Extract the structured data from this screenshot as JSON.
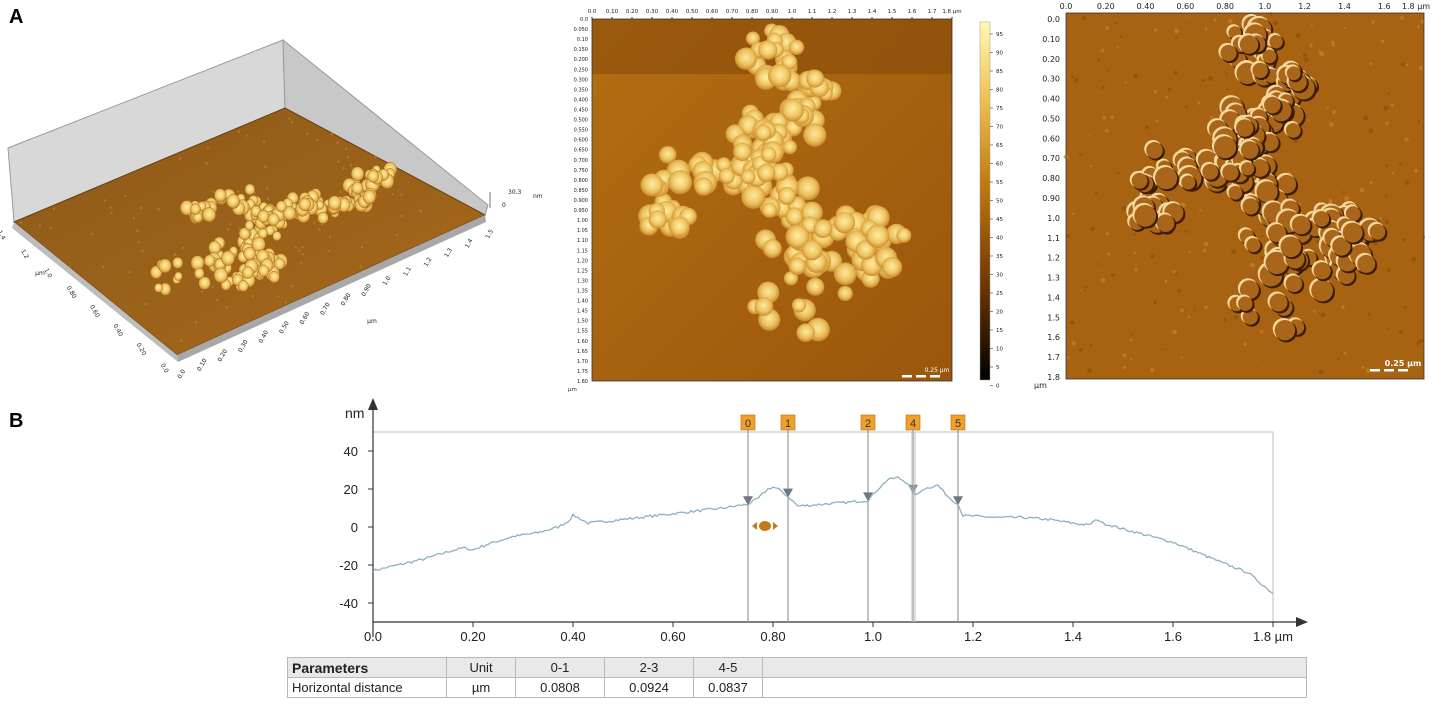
{
  "panel_labels": {
    "a": "A",
    "b": "B"
  },
  "colors": {
    "afm_dark": "#3a1d00",
    "afm_mid": "#b77314",
    "afm_light": "#fff2a8",
    "profile_line": "#8fb0c0",
    "marker_fill": "#f1a12a",
    "marker_arrow": "#6f7780"
  },
  "panel_a": {
    "view3d": {
      "x_ticks": [
        "0.0",
        "0.10",
        "0.20",
        "0.30",
        "0.40",
        "0.50",
        "0.60",
        "0.70",
        "0.80",
        "0.90",
        "1.0",
        "1.1",
        "1.2",
        "1.3",
        "1.4",
        "1.5"
      ],
      "x_unit": "µm",
      "y_ticks": [
        "0.0",
        "0.20",
        "0.40",
        "0.60",
        "0.80",
        "1.0",
        "1.2",
        "1.4"
      ],
      "y_unit": "µm",
      "z_ticks": [
        "30.3",
        "0"
      ],
      "z_unit": "nm"
    },
    "height_map": {
      "x_ticks": [
        "0.0",
        "0.10",
        "0.20",
        "0.30",
        "0.40",
        "0.50",
        "0.60",
        "0.70",
        "0.80",
        "0.90",
        "1.0",
        "1.1",
        "1.2",
        "1.3",
        "1.4",
        "1.5",
        "1.6",
        "1.7",
        "1.8 µm"
      ],
      "y_ticks": [
        "0.0",
        "0.050",
        "0.10",
        "0.150",
        "0.200",
        "0.250",
        "0.300",
        "0.350",
        "0.400",
        "0.450",
        "0.500",
        "0.550",
        "0.600",
        "0.650",
        "0.700",
        "0.750",
        "0.800",
        "0.850",
        "0.900",
        "0.950",
        "1.00",
        "1.05",
        "1.10",
        "1.15",
        "1.20",
        "1.25",
        "1.30",
        "1.35",
        "1.40",
        "1.45",
        "1.50",
        "1.55",
        "1.60",
        "1.65",
        "1.70",
        "1.75",
        "1.80"
      ],
      "y_unit": "µm",
      "colorbar_ticks": [
        "95",
        "90",
        "85",
        "80",
        "75",
        "70",
        "65",
        "60",
        "55",
        "50",
        "45",
        "40",
        "35",
        "30",
        "25",
        "20",
        "15",
        "10",
        "5",
        "0"
      ],
      "scale_bar": "0.25 µm"
    },
    "amplitude_map": {
      "x_ticks": [
        "0.0",
        "0.20",
        "0.40",
        "0.60",
        "0.80",
        "1.0",
        "1.2",
        "1.4",
        "1.6",
        "1.8 µm"
      ],
      "y_ticks": [
        "0.0",
        "0.10",
        "0.20",
        "0.30",
        "0.40",
        "0.50",
        "0.60",
        "0.70",
        "0.80",
        "0.90",
        "1.0",
        "1.1",
        "1.2",
        "1.3",
        "1.4",
        "1.5",
        "1.6",
        "1.7",
        "1.8"
      ],
      "y_unit": "µm",
      "scale_bar": "0.25 µm"
    }
  },
  "chart_data": {
    "type": "line",
    "xlabel": "µm",
    "ylabel": "nm",
    "xlim": [
      0,
      1.8
    ],
    "ylim": [
      -50,
      50
    ],
    "x_ticks": [
      0.0,
      0.2,
      0.4,
      0.6,
      0.8,
      1.0,
      1.2,
      1.4,
      1.6,
      1.8
    ],
    "x_tick_labels": [
      "0.0",
      "0.20",
      "0.40",
      "0.60",
      "0.80",
      "1.0",
      "1.2",
      "1.4",
      "1.6",
      "1.8 µm"
    ],
    "y_ticks": [
      40,
      20,
      0,
      -20,
      -40
    ],
    "y_tick_labels": [
      "40",
      "20",
      "0",
      "-20",
      "-40"
    ],
    "grid": false,
    "series": [
      {
        "x": [
          0,
          0.05,
          0.1,
          0.15,
          0.18,
          0.2,
          0.23,
          0.28,
          0.33,
          0.37,
          0.39,
          0.4,
          0.41,
          0.43,
          0.5,
          0.6,
          0.7,
          0.75,
          0.77,
          0.79,
          0.8,
          0.81,
          0.83,
          0.85,
          0.9,
          0.95,
          0.99,
          1.01,
          1.03,
          1.05,
          1.07,
          1.08,
          1.09,
          1.1,
          1.13,
          1.15,
          1.17,
          1.18,
          1.25,
          1.3,
          1.35,
          1.4,
          1.43,
          1.45,
          1.46,
          1.5,
          1.6,
          1.7,
          1.75,
          1.8
        ],
        "y": [
          -23,
          -20,
          -17,
          -13,
          -11,
          -12,
          -9,
          -5,
          -3,
          0,
          3,
          6,
          5,
          2,
          4,
          7,
          10,
          12,
          15,
          20,
          21,
          20,
          16,
          11,
          12,
          13,
          14,
          20,
          25,
          26,
          23,
          18,
          17,
          20,
          22,
          16,
          12,
          6,
          5,
          5,
          4,
          2,
          1,
          4,
          2,
          -1,
          -8,
          -19,
          -24,
          -35
        ]
      }
    ],
    "markers": [
      {
        "label": "0",
        "x": 0.75
      },
      {
        "label": "1",
        "x": 0.83
      },
      {
        "label": "2",
        "x": 0.99
      },
      {
        "label": "4",
        "x": 1.08
      },
      {
        "label": "5",
        "x": 1.17
      }
    ],
    "table": {
      "columns": [
        "Parameters",
        "Unit",
        "0-1",
        "2-3",
        "4-5"
      ],
      "rows": [
        [
          "Horizontal distance",
          "µm",
          "0.0808",
          "0.0924",
          "0.0837"
        ]
      ]
    }
  }
}
